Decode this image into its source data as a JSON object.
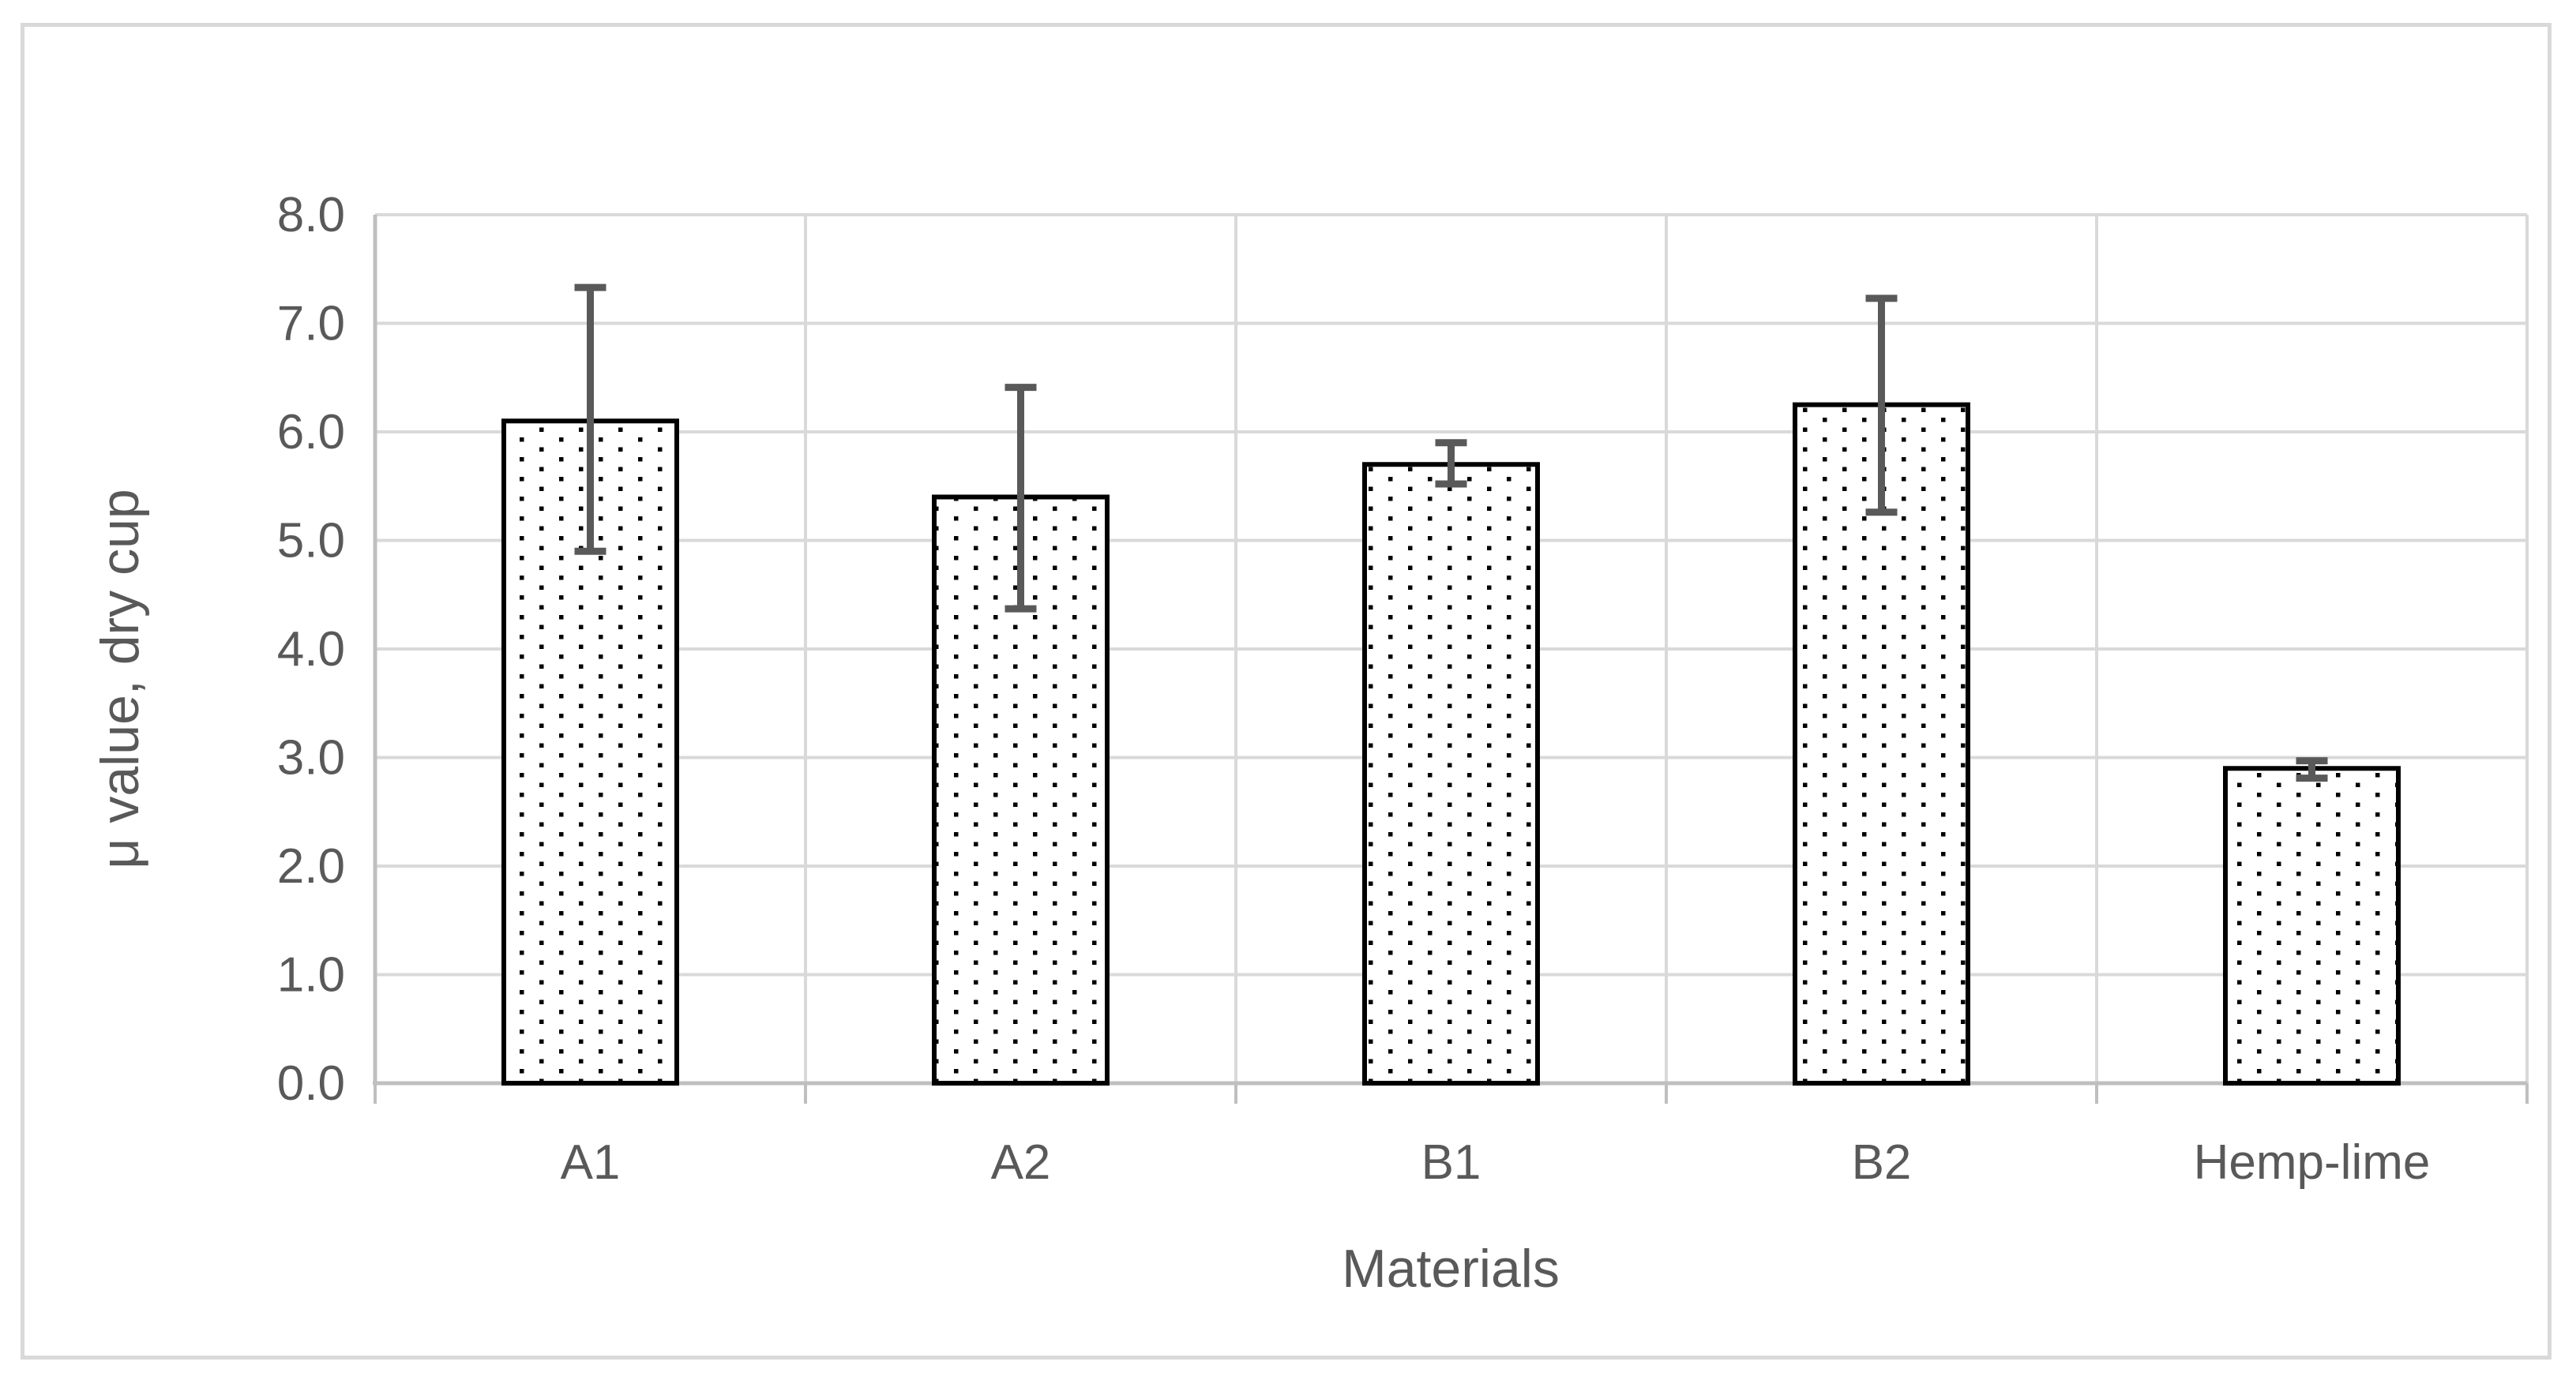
{
  "chart_data": {
    "type": "bar",
    "title": "",
    "categories": [
      "A1",
      "A2",
      "B1",
      "B2",
      "Hemp-lime"
    ],
    "values": [
      6.1,
      5.4,
      5.7,
      6.25,
      2.9
    ],
    "error_upper": [
      7.33,
      6.41,
      5.9,
      7.23,
      2.97
    ],
    "error_lower": [
      4.9,
      4.37,
      5.52,
      5.26,
      2.81
    ],
    "xlabel": "Materials",
    "ylabel": "μ value, dry cup",
    "ylim": [
      0,
      8
    ],
    "ytick_step": 1,
    "ytick_labels": [
      "0.0",
      "1.0",
      "2.0",
      "3.0",
      "4.0",
      "5.0",
      "6.0",
      "7.0",
      "8.0"
    ],
    "grid": true,
    "legend": "none",
    "bar_style": {
      "fill": "dotted-pattern",
      "pattern_dot_color": "#000000",
      "pattern_background": "#ffffff",
      "border_color": "#000000"
    },
    "colors": {
      "text": "#595959",
      "gridline": "#d9d9d9",
      "axis_line": "#bfbfbf",
      "error_bar": "#595959",
      "figure_border": "#d9d9d9",
      "background": "#ffffff"
    }
  }
}
